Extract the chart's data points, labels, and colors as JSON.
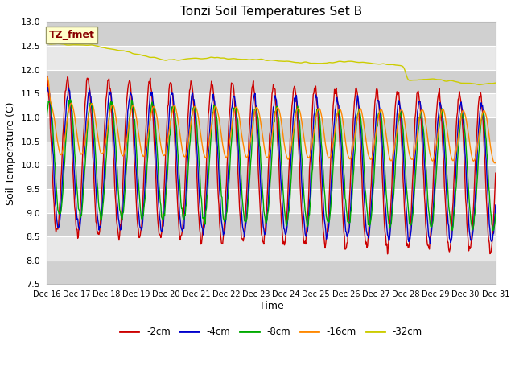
{
  "title": "Tonzi Soil Temperatures Set B",
  "xlabel": "Time",
  "ylabel": "Soil Temperature (C)",
  "ylim": [
    7.5,
    13.0
  ],
  "yticks": [
    7.5,
    8.0,
    8.5,
    9.0,
    9.5,
    10.0,
    10.5,
    11.0,
    11.5,
    12.0,
    12.5,
    13.0
  ],
  "x_tick_labels": [
    "Dec 16",
    "Dec 17",
    "Dec 18",
    "Dec 19",
    "Dec 20",
    "Dec 21",
    "Dec 22",
    "Dec 23",
    "Dec 24",
    "Dec 25",
    "Dec 26",
    "Dec 27",
    "Dec 28",
    "Dec 29",
    "Dec 30",
    "Dec 31"
  ],
  "colors": {
    "-2cm": "#cc0000",
    "-4cm": "#0000cc",
    "-8cm": "#00aa00",
    "-16cm": "#ff8800",
    "-32cm": "#cccc00"
  },
  "annotation_text": "TZ_fmet",
  "annotation_color": "#880000",
  "annotation_bg": "#ffffcc",
  "n_points": 720
}
